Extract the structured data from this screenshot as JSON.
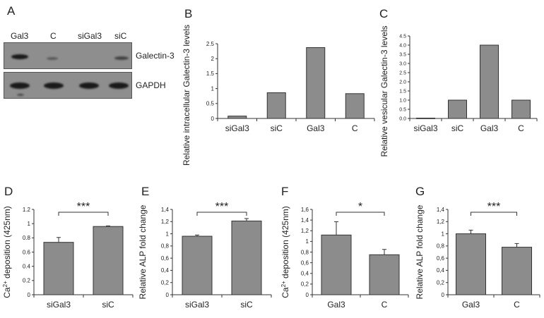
{
  "panel_a": {
    "letter": "A",
    "lanes": [
      "Gal3",
      "C",
      "siGal3",
      "siC"
    ],
    "rows": [
      {
        "label": "Galectin-3",
        "band_intensity": [
          0.95,
          0.35,
          0.0,
          0.55
        ]
      },
      {
        "label": "GAPDH",
        "band_intensity": [
          1.0,
          1.0,
          1.0,
          1.0
        ]
      }
    ]
  },
  "chart_data": [
    {
      "id": "B",
      "type": "bar",
      "categories": [
        "siGal3",
        "siC",
        "Gal3",
        "C"
      ],
      "values": [
        0.08,
        0.86,
        2.37,
        0.83
      ],
      "ylabel": "Relative intracellular Galectin-3 levels",
      "ylim": [
        0,
        2.5
      ],
      "yticks": [
        "0",
        "0.5",
        "1",
        "1.5",
        "2",
        "2.5"
      ],
      "grid": false
    },
    {
      "id": "C",
      "type": "bar",
      "categories": [
        "siGal3",
        "siC",
        "Gal3",
        "C"
      ],
      "values": [
        0.02,
        1.0,
        4.0,
        1.0
      ],
      "ylabel": "Relative vesicular Galectin-3 levels",
      "ylim": [
        0,
        4.5
      ],
      "yticks": [
        "0.0",
        "0.5",
        "1.0",
        "1.5",
        "2.0",
        "2.5",
        "3.0",
        "3.5",
        "4.0",
        "4.5"
      ],
      "grid": false
    },
    {
      "id": "D",
      "type": "bar",
      "categories": [
        "siGal3",
        "siC"
      ],
      "values": [
        0.86,
        1.12
      ],
      "errors": [
        0.08,
        0.01
      ],
      "ylabel_pre": "Ca",
      "ylabel_sup": "2+",
      "ylabel_post": " deposition (425nm)",
      "ylim": [
        0,
        1.4
      ],
      "yticks": [
        "0",
        "0.2",
        "0.4",
        "0.6",
        "0.8",
        "1",
        "1.2"
      ],
      "significance": "***",
      "grid": false
    },
    {
      "id": "E",
      "type": "bar",
      "categories": [
        "siGal3",
        "siC"
      ],
      "values": [
        0.96,
        1.21
      ],
      "errors": [
        0.02,
        0.04
      ],
      "ylabel": "Relative ALP fold change",
      "ylim": [
        0,
        1.4
      ],
      "yticks": [
        "0",
        "0,2",
        "0,4",
        "0,6",
        "0,8",
        "1",
        "1,2",
        "1,4"
      ],
      "significance": "***",
      "grid": false
    },
    {
      "id": "F",
      "type": "bar",
      "categories": [
        "Gal3",
        "C"
      ],
      "values": [
        1.12,
        0.75
      ],
      "errors": [
        0.25,
        0.1
      ],
      "ylabel_pre": "Ca",
      "ylabel_sup": "2+",
      "ylabel_post": " deposition (425nm)",
      "ylim": [
        0,
        1.6
      ],
      "yticks": [
        "0",
        "0,2",
        "0,4",
        "0,6",
        "0,8",
        "1",
        "1,2",
        "1,4",
        "1,6"
      ],
      "significance": "*",
      "grid": false
    },
    {
      "id": "G",
      "type": "bar",
      "categories": [
        "Gal3",
        "C"
      ],
      "values": [
        1.0,
        0.78
      ],
      "errors": [
        0.06,
        0.06
      ],
      "ylabel": "Relative ALP fold change",
      "ylim": [
        0,
        1.4
      ],
      "yticks": [
        "0",
        "0,2",
        "0,4",
        "0,6",
        "0,8",
        "1",
        "1,2",
        "1,4"
      ],
      "significance": "***",
      "grid": false
    }
  ],
  "colors": {
    "bar_fill": "#8c8c8c",
    "bar_stroke": "#333333",
    "axis": "#333333"
  }
}
